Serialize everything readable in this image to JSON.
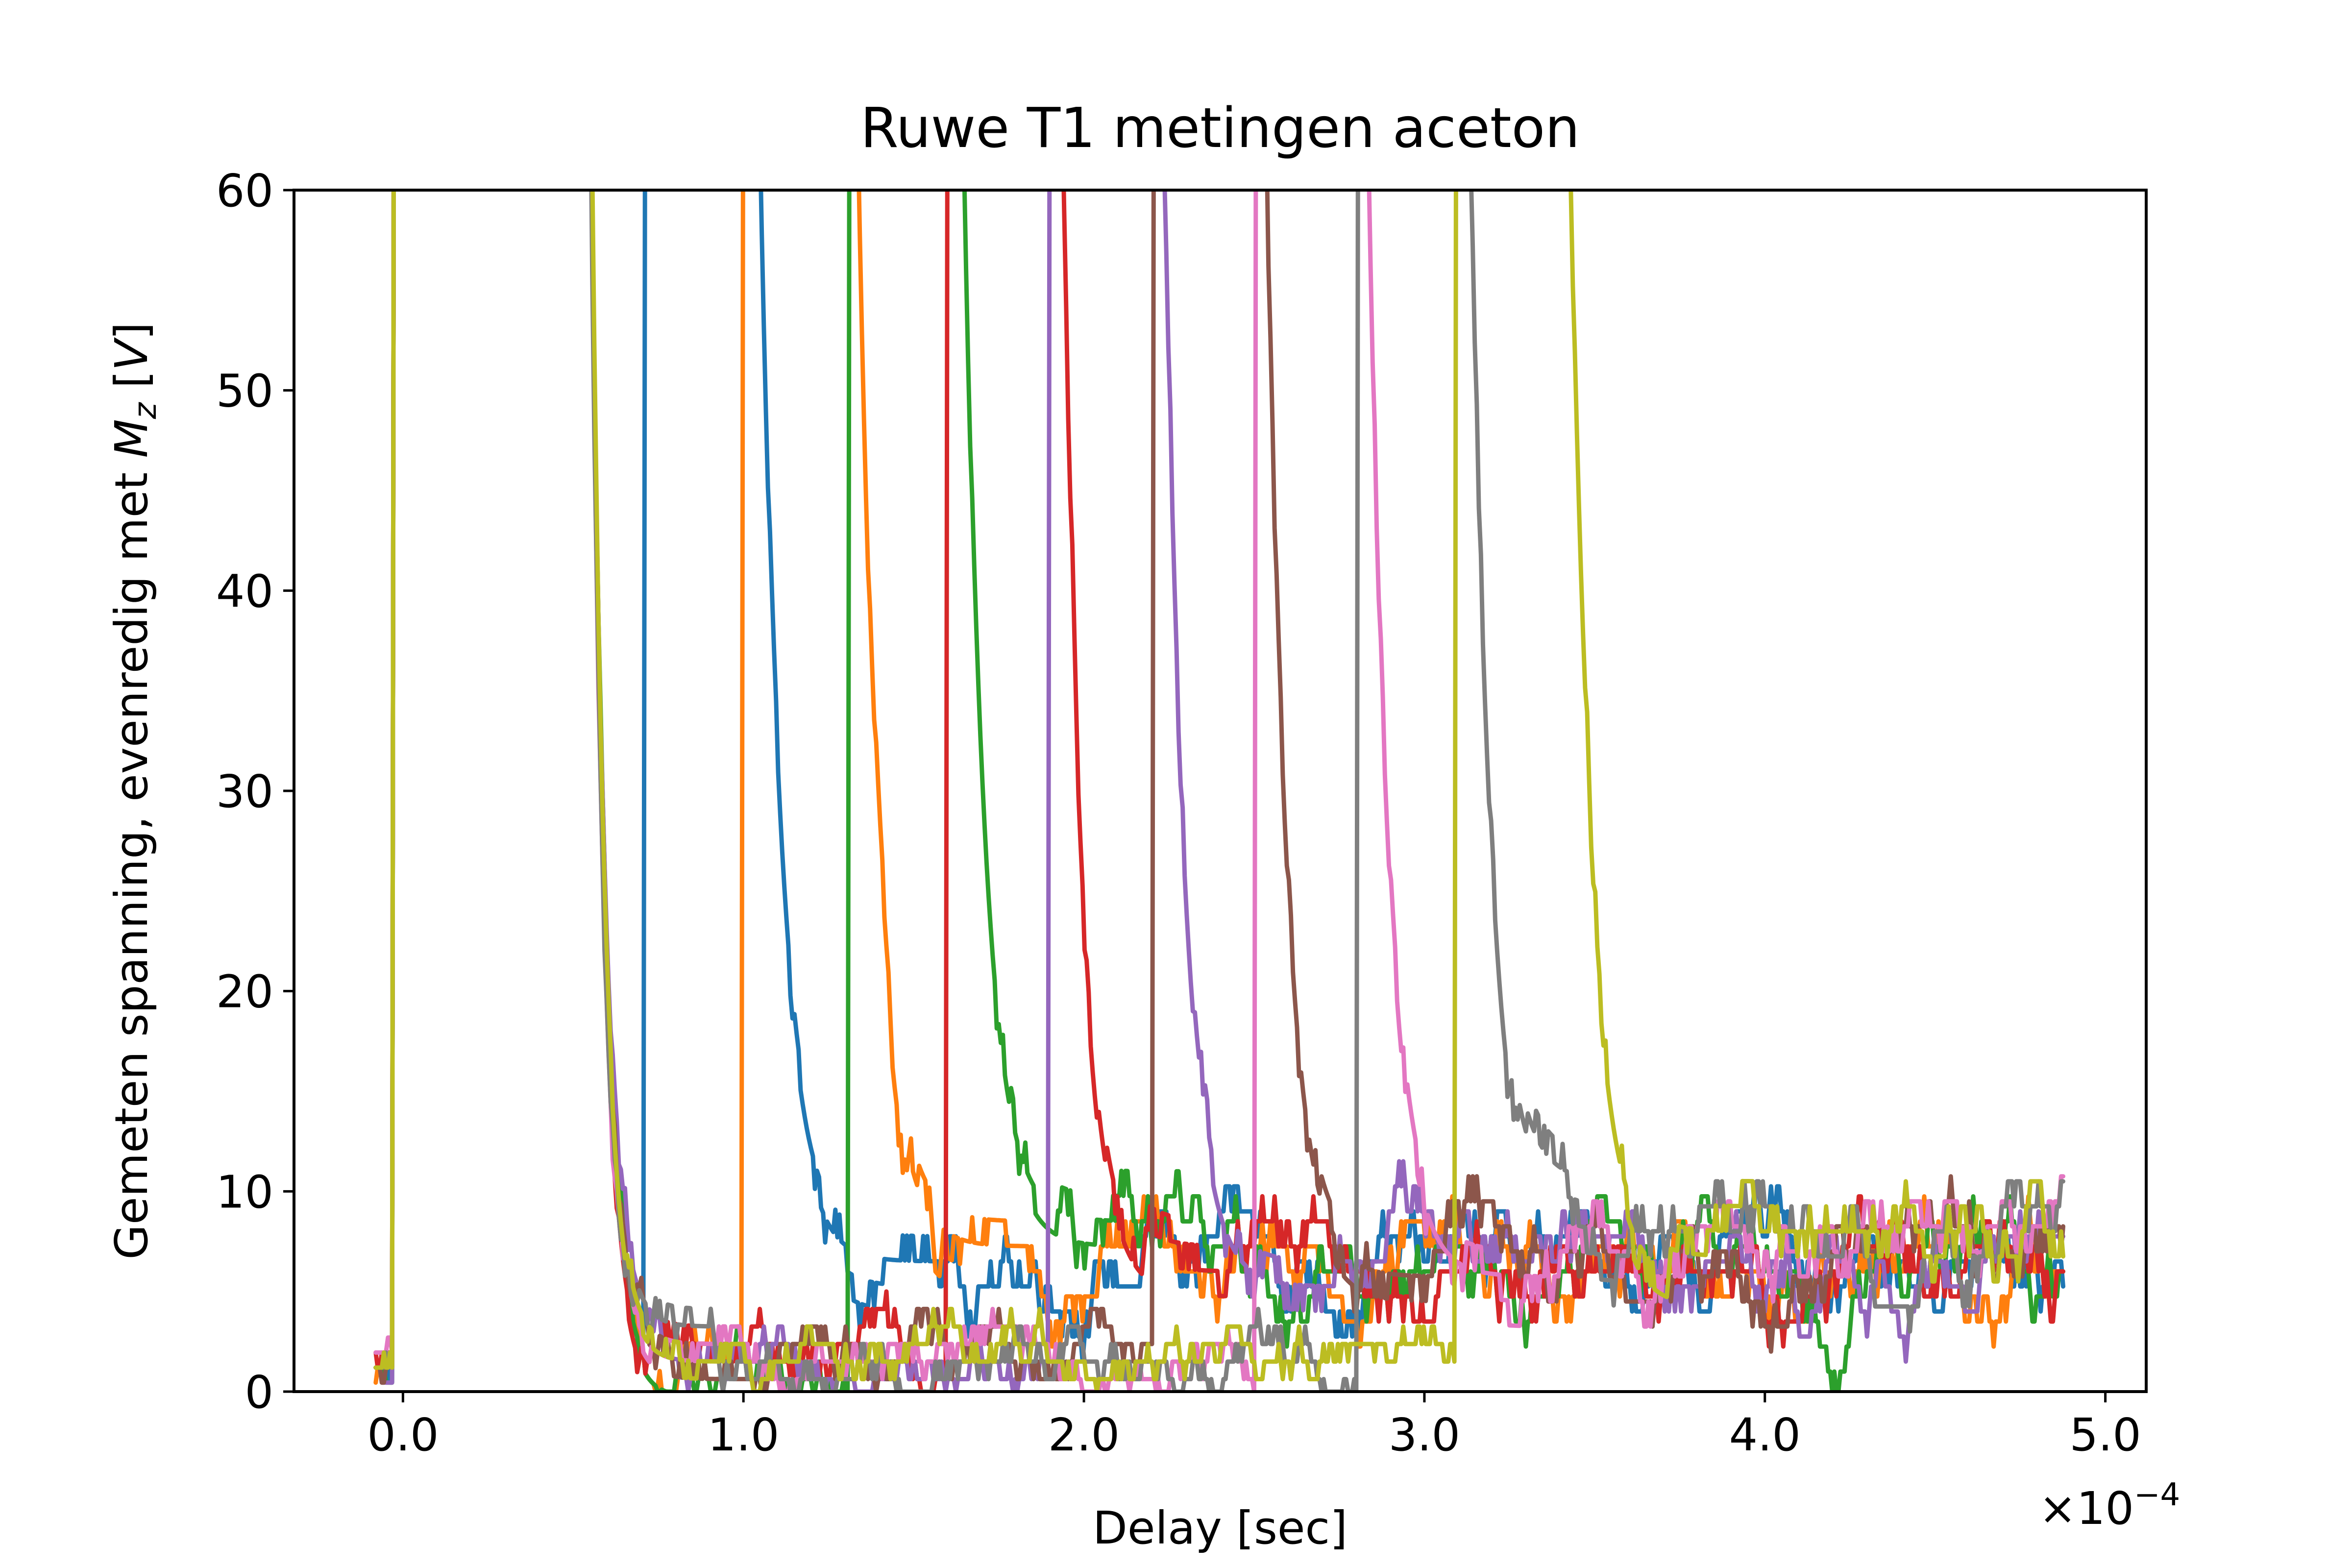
{
  "chart_data": {
    "type": "line",
    "title": "Ruwe T1 metingen aceton",
    "xlabel": "Delay [sec]",
    "ylabel_main": "Gemeten spanning, evenredig met ",
    "ylabel_var": "M",
    "ylabel_sub": "z",
    "ylabel_unit_open": " [",
    "ylabel_unit": "V",
    "ylabel_unit_close": "]",
    "x_offset_text": "×10",
    "x_offset_exp": "−4",
    "x_tick_labels": [
      "0.0",
      "1.0",
      "2.0",
      "3.0",
      "4.0",
      "5.0"
    ],
    "x_ticks": [
      0.0,
      1.0,
      2.0,
      3.0,
      4.0,
      5.0
    ],
    "y_tick_labels": [
      "0",
      "10",
      "20",
      "30",
      "40",
      "50",
      "60"
    ],
    "y_ticks": [
      0,
      10,
      20,
      30,
      40,
      50,
      60
    ],
    "xlim": [
      -0.32,
      5.12
    ],
    "ylim": [
      0,
      60
    ],
    "x_units_note": "x values in units of 1e-4 s",
    "grid": false,
    "x_start": -0.08,
    "x_end": 4.88,
    "series": [
      {
        "color": "#1f77b4",
        "pulse1": 0.0,
        "pulse2": 0.74,
        "decay_ref": 1.0,
        "baseline": 6.5
      },
      {
        "color": "#ff7f0e",
        "pulse1": 0.0,
        "pulse2": 1.03,
        "decay_ref": 1.3,
        "baseline": 6.0
      },
      {
        "color": "#2ca02c",
        "pulse1": 0.0,
        "pulse2": 1.34,
        "decay_ref": 1.6,
        "baseline": 6.0
      },
      {
        "color": "#d62728",
        "pulse1": 0.0,
        "pulse2": 1.63,
        "decay_ref": 1.9,
        "baseline": 6.0
      },
      {
        "color": "#9467bd",
        "pulse1": 0.0,
        "pulse2": 1.93,
        "decay_ref": 2.2,
        "baseline": 6.5
      },
      {
        "color": "#8c564b",
        "pulse1": 0.0,
        "pulse2": 2.23,
        "decay_ref": 2.5,
        "baseline": 7.0
      },
      {
        "color": "#e377c2",
        "pulse1": 0.0,
        "pulse2": 2.53,
        "decay_ref": 2.8,
        "baseline": 7.0
      },
      {
        "color": "#7f7f7f",
        "pulse1": 0.0,
        "pulse2": 2.83,
        "decay_ref": 3.1,
        "baseline": 8.0
      },
      {
        "color": "#bcbd22",
        "pulse1": 0.0,
        "pulse2": 3.12,
        "decay_ref": 3.4,
        "baseline": 8.0
      }
    ]
  }
}
